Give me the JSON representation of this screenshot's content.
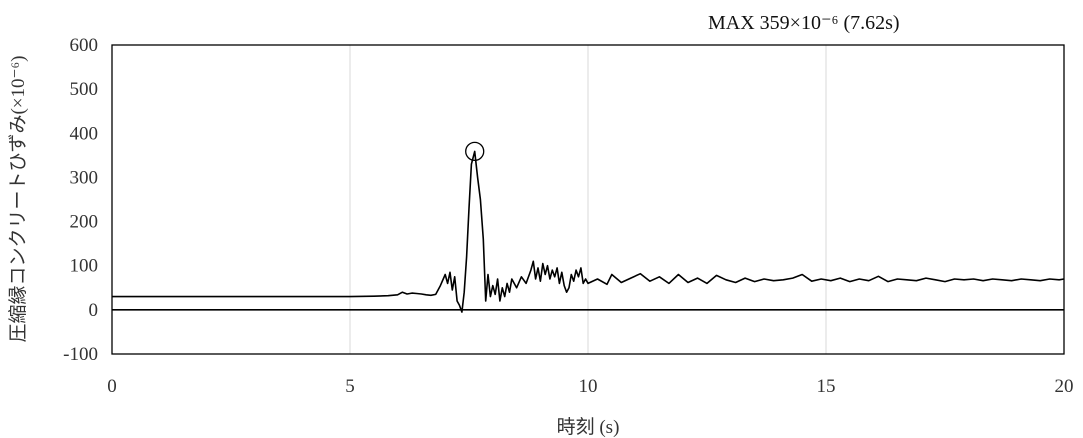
{
  "chart_data": {
    "type": "line",
    "title": "",
    "xlabel": "時刻 (s)",
    "ylabel": "圧縮縁コンクリートひずみ(×10⁻⁶)",
    "xlim": [
      0,
      20
    ],
    "ylim": [
      -100,
      600
    ],
    "x_ticks": [
      "0",
      "5",
      "10",
      "15",
      "20"
    ],
    "y_ticks": [
      "600",
      "500",
      "400",
      "300",
      "200",
      "100",
      "0",
      "-100"
    ],
    "grid": "vertical",
    "legend": "none",
    "annotation": {
      "text": "MAX  359×10⁻⁶ (7.62s)",
      "marker_x": 7.62,
      "marker_y": 359
    },
    "series": [
      {
        "x": [
          0,
          2,
          4,
          5,
          5.5,
          5.8,
          6.0,
          6.1,
          6.2,
          6.3,
          6.4,
          6.5,
          6.6,
          6.7,
          6.8,
          6.9,
          7.0,
          7.05,
          7.1,
          7.15,
          7.2,
          7.25,
          7.3,
          7.35,
          7.4,
          7.45,
          7.5,
          7.55,
          7.62,
          7.68,
          7.74,
          7.8,
          7.85,
          7.9,
          7.95,
          8.0,
          8.05,
          8.1,
          8.15,
          8.2,
          8.25,
          8.3,
          8.35,
          8.4,
          8.5,
          8.6,
          8.7,
          8.8,
          8.85,
          8.9,
          8.95,
          9.0,
          9.05,
          9.1,
          9.15,
          9.2,
          9.25,
          9.3,
          9.35,
          9.4,
          9.45,
          9.5,
          9.55,
          9.6,
          9.65,
          9.7,
          9.75,
          9.8,
          9.85,
          9.9,
          9.95,
          10.0,
          10.2,
          10.4,
          10.5,
          10.7,
          10.9,
          11.1,
          11.3,
          11.5,
          11.7,
          11.9,
          12.1,
          12.3,
          12.5,
          12.7,
          12.9,
          13.1,
          13.3,
          13.5,
          13.7,
          13.9,
          14.1,
          14.3,
          14.5,
          14.7,
          14.9,
          15.1,
          15.3,
          15.5,
          15.7,
          15.9,
          16.1,
          16.3,
          16.5,
          16.7,
          16.9,
          17.1,
          17.3,
          17.5,
          17.7,
          17.9,
          18.1,
          18.3,
          18.5,
          18.7,
          18.9,
          19.1,
          19.3,
          19.5,
          19.7,
          19.9,
          20.0
        ],
        "y": [
          30,
          30,
          30,
          30,
          31,
          32,
          34,
          40,
          36,
          38,
          37,
          36,
          34,
          33,
          35,
          55,
          80,
          60,
          85,
          45,
          75,
          20,
          10,
          -5,
          40,
          120,
          230,
          330,
          359,
          300,
          250,
          160,
          20,
          80,
          30,
          55,
          35,
          70,
          20,
          50,
          30,
          60,
          40,
          70,
          50,
          75,
          60,
          90,
          110,
          70,
          95,
          65,
          105,
          80,
          100,
          70,
          90,
          75,
          95,
          60,
          85,
          55,
          40,
          50,
          80,
          65,
          90,
          75,
          95,
          60,
          70,
          60,
          70,
          58,
          80,
          62,
          72,
          82,
          65,
          75,
          60,
          80,
          62,
          72,
          60,
          78,
          68,
          62,
          72,
          64,
          70,
          66,
          68,
          72,
          80,
          65,
          70,
          66,
          72,
          64,
          70,
          66,
          76,
          64,
          70,
          68,
          66,
          72,
          68,
          64,
          70,
          68,
          70,
          66,
          70,
          68,
          66,
          70,
          68,
          66,
          70,
          68,
          70
        ]
      }
    ]
  }
}
